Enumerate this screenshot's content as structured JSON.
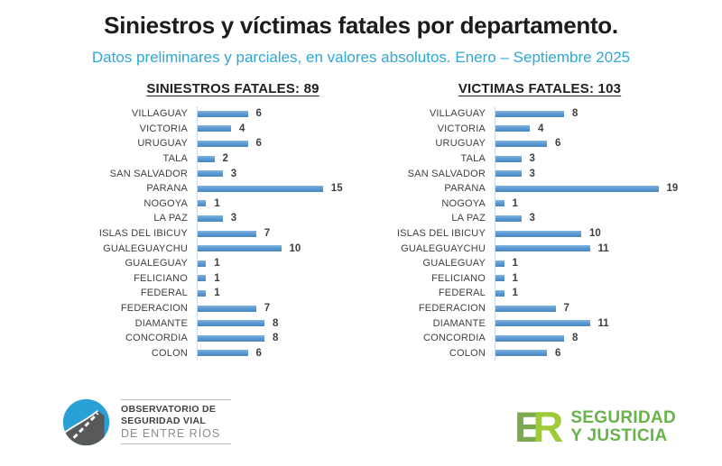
{
  "header": {
    "title": "Siniestros y víctimas fatales por departamento.",
    "subtitle": "Datos preliminares y parciales, en valores absolutos. Enero – Septiembre 2025"
  },
  "chart_data": [
    {
      "type": "bar",
      "orientation": "horizontal",
      "title": "SINIESTROS FATALES: 89",
      "total": 89,
      "categories": [
        "VILLAGUAY",
        "VICTORIA",
        "URUGUAY",
        "TALA",
        "SAN SALVADOR",
        "PARANA",
        "NOGOYA",
        "LA PAZ",
        "ISLAS DEL IBICUY",
        "GUALEGUAYCHU",
        "GUALEGUAY",
        "FELICIANO",
        "FEDERAL",
        "FEDERACION",
        "DIAMANTE",
        "CONCORDIA",
        "COLON"
      ],
      "values": [
        6,
        4,
        6,
        2,
        3,
        15,
        1,
        3,
        7,
        10,
        1,
        1,
        1,
        7,
        8,
        8,
        6
      ],
      "xlim": [
        0,
        16
      ],
      "data_labels": true,
      "grid": false,
      "bar_color": "#5b9bd5"
    },
    {
      "type": "bar",
      "orientation": "horizontal",
      "title": "VICTIMAS FATALES: 103",
      "total": 103,
      "categories": [
        "VILLAGUAY",
        "VICTORIA",
        "URUGUAY",
        "TALA",
        "SAN SALVADOR",
        "PARANA",
        "NOGOYA",
        "LA PAZ",
        "ISLAS DEL IBICUY",
        "GUALEGUAYCHU",
        "GUALEGUAY",
        "FELICIANO",
        "FEDERAL",
        "FEDERACION",
        "DIAMANTE",
        "CONCORDIA",
        "COLON"
      ],
      "values": [
        8,
        4,
        6,
        3,
        3,
        19,
        1,
        3,
        10,
        11,
        1,
        1,
        1,
        7,
        11,
        8,
        6
      ],
      "xlim": [
        0,
        20
      ],
      "data_labels": true,
      "grid": false,
      "bar_color": "#5b9bd5"
    }
  ],
  "footer": {
    "observatorio": {
      "line1": "OBSERVATORIO DE",
      "line2": "SEGURIDAD VIAL",
      "line3": "DE ENTRE RÍOS",
      "icon": "road-circle-icon",
      "circle_color": "#29a0d8",
      "road_color": "#58595b"
    },
    "er": {
      "monogram_e": "E",
      "monogram_r": "R",
      "line1": "SEGURIDAD",
      "line2": "Y JUSTICIA",
      "color_e": "#79aa4e",
      "color_r": "#9fcb3a",
      "text_color": "#68b34a"
    }
  },
  "colors": {
    "title": "#1c1c1c",
    "subtitle": "#2fa8d5",
    "bar": "#5b9bd5",
    "label": "#3f3f3f",
    "axis_line": "#c9dcee"
  }
}
